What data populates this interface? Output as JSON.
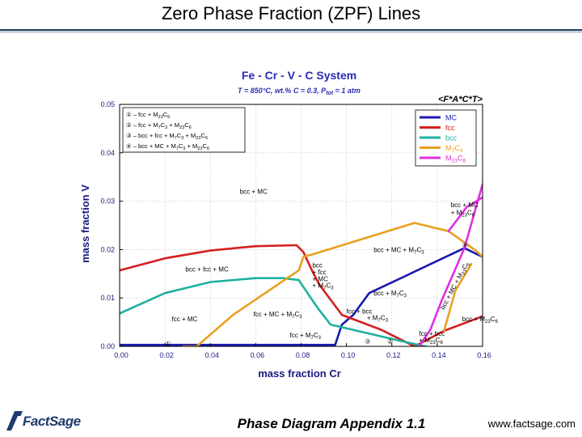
{
  "slide": {
    "title": "Zero Phase Fraction (ZPF) Lines",
    "footer_center": "Phase Diagram Appendix 1.1",
    "footer_right": "www.factsage.com",
    "logo_text": "FactSage"
  },
  "chart_data": {
    "type": "line",
    "title": "Fe - Cr - V - C System",
    "subtitle_parts": [
      "T = 850°C, wt.% C = 0.3, P",
      "tot",
      " = 1 atm"
    ],
    "tag": "<F*A*C*T>",
    "xlabel": "mass fraction Cr",
    "ylabel": "mass fraction V",
    "xlim": [
      0,
      0.16
    ],
    "ylim": [
      0,
      0.05
    ],
    "x_ticks": [
      "0.00",
      "0.02",
      "0.04",
      "0.06",
      "0.08",
      "0.10",
      "0.12",
      "0.14",
      "0.16"
    ],
    "y_ticks": [
      "0.00",
      "0.01",
      "0.02",
      "0.03",
      "0.04",
      "0.05"
    ],
    "colors": {
      "MC": "#1a1ab0",
      "fcc": "#d42020",
      "bcc": "#20b0a0",
      "M7C3": "#e8a020",
      "M23C6": "#e030e0"
    },
    "legend": [
      {
        "name": "MC",
        "color": "#1a1ab0"
      },
      {
        "name": "fcc",
        "color": "#d42020"
      },
      {
        "name": "bcc",
        "color": "#20b0a0"
      },
      {
        "name": "M7C3",
        "color": "#e8a020"
      },
      {
        "name": "M23C6",
        "color": "#e030e0"
      }
    ],
    "key": [
      "① – fcc + M23C6",
      "② – fcc + M7C3 + M23C6",
      "③ – bcc + fcc + M7C3 + M23C6",
      "④ – bcc + MC + M7C3 + M23C6"
    ],
    "series": [
      {
        "name": "MC",
        "points": [
          [
            0.0,
            0.0003
          ],
          [
            0.025,
            0.0003
          ],
          [
            0.095,
            0.0003
          ],
          [
            0.098,
            0.0045
          ],
          [
            0.103,
            0.0065
          ],
          [
            0.11,
            0.011
          ],
          [
            0.152,
            0.0203
          ],
          [
            0.16,
            0.0185
          ]
        ]
      },
      {
        "name": "fcc",
        "points": [
          [
            0.0,
            0.0157
          ],
          [
            0.02,
            0.0182
          ],
          [
            0.04,
            0.0198
          ],
          [
            0.06,
            0.0207
          ],
          [
            0.078,
            0.0209
          ],
          [
            0.081,
            0.0195
          ],
          [
            0.085,
            0.0155
          ],
          [
            0.088,
            0.0128
          ],
          [
            0.098,
            0.0065
          ],
          [
            0.115,
            0.0035
          ],
          [
            0.13,
            0.0
          ],
          [
            0.143,
            0.0032
          ],
          [
            0.16,
            0.0062
          ]
        ]
      },
      {
        "name": "bcc",
        "points": [
          [
            0.0,
            0.0068
          ],
          [
            0.02,
            0.011
          ],
          [
            0.04,
            0.0133
          ],
          [
            0.06,
            0.0141
          ],
          [
            0.072,
            0.0141
          ],
          [
            0.079,
            0.0137
          ],
          [
            0.084,
            0.0102
          ],
          [
            0.088,
            0.0075
          ],
          [
            0.093,
            0.0045
          ],
          [
            0.125,
            0.001
          ],
          [
            0.135,
            0.0
          ]
        ]
      },
      {
        "name": "M7C3",
        "points": [
          [
            0.028,
            0.0
          ],
          [
            0.034,
            0.0
          ],
          [
            0.05,
            0.0065
          ],
          [
            0.072,
            0.0135
          ],
          [
            0.079,
            0.0157
          ],
          [
            0.081,
            0.0185
          ],
          [
            0.085,
            0.019
          ],
          [
            0.13,
            0.0255
          ],
          [
            0.145,
            0.0238
          ],
          [
            0.157,
            0.0198
          ],
          [
            0.16,
            0.0185
          ]
        ]
      },
      {
        "name": "M23C6",
        "points": [
          [
            0.132,
            0.0
          ],
          [
            0.137,
            0.0035
          ],
          [
            0.142,
            0.0095
          ],
          [
            0.152,
            0.0203
          ],
          [
            0.16,
            0.0335
          ]
        ]
      },
      {
        "name": "M23C6",
        "points": [
          [
            0.145,
            0.0238
          ],
          [
            0.153,
            0.0288
          ],
          [
            0.16,
            0.0308
          ]
        ]
      },
      {
        "name": "M7C3",
        "points": [
          [
            0.143,
            0.0032
          ],
          [
            0.148,
            0.0115
          ],
          [
            0.155,
            0.017
          ]
        ]
      }
    ],
    "annotations": [
      {
        "text": "bcc + MC",
        "x": 0.053,
        "y": 0.0315
      },
      {
        "text": "bcc + MC",
        "x": 0.146,
        "y": 0.0288
      },
      {
        "text": "+ M23C6",
        "x": 0.146,
        "y": 0.0272
      },
      {
        "text": "bcc + MC + M7C3",
        "x": 0.112,
        "y": 0.0195
      },
      {
        "text": "bcc + fcc + MC",
        "x": 0.029,
        "y": 0.0155
      },
      {
        "text": "bcc",
        "x": 0.085,
        "y": 0.0163
      },
      {
        "text": "+ fcc",
        "x": 0.085,
        "y": 0.0149
      },
      {
        "text": "+ MC",
        "x": 0.085,
        "y": 0.0135
      },
      {
        "text": "+ M7C3",
        "x": 0.085,
        "y": 0.0121
      },
      {
        "text": "bcc + M7C3",
        "x": 0.112,
        "y": 0.0105
      },
      {
        "text": "fcc + bcc",
        "x": 0.1,
        "y": 0.0068
      },
      {
        "text": "+ M7C3",
        "x": 0.109,
        "y": 0.0054
      },
      {
        "text": "fcc + MC",
        "x": 0.023,
        "y": 0.0052
      },
      {
        "text": "fcc + MC + M7C3",
        "x": 0.059,
        "y": 0.0062
      },
      {
        "text": "fcc + M7C3",
        "x": 0.075,
        "y": 0.0018
      },
      {
        "text": "bcc + M23C6",
        "x": 0.151,
        "y": 0.0052
      },
      {
        "text": "fcc + bcc",
        "x": 0.132,
        "y": 0.0022
      },
      {
        "text": "+ M23C6",
        "x": 0.132,
        "y": 0.0008
      },
      {
        "text": "bcc + MC + M23C6",
        "x": 0.143,
        "y": 0.0075,
        "rotate": -62
      },
      {
        "text": "①",
        "x": 0.02,
        "y": 0.0001
      },
      {
        "text": "②",
        "x": 0.118,
        "y": 0.0006
      },
      {
        "text": "③",
        "x": 0.108,
        "y": 0.0006
      },
      {
        "text": "④",
        "x": 0.151,
        "y": 0.0205
      }
    ]
  }
}
